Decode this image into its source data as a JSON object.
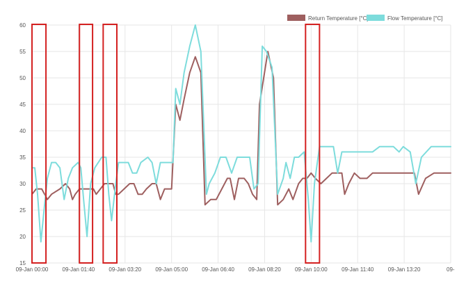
{
  "chart_data": {
    "type": "line",
    "title": "",
    "xlabel": "",
    "ylabel": "",
    "ylim": [
      15,
      60
    ],
    "y_ticks": [
      15,
      20,
      25,
      30,
      35,
      40,
      45,
      50,
      55,
      60
    ],
    "x_range_hours": [
      0,
      15
    ],
    "x_tick_labels": [
      {
        "hour": 0.0,
        "label": "09-Jan 00:00"
      },
      {
        "hour": 1.6667,
        "label": "09-Jan 01:40"
      },
      {
        "hour": 3.3333,
        "label": "09-Jan 03:20"
      },
      {
        "hour": 5.0,
        "label": "09-Jan 05:00"
      },
      {
        "hour": 6.6667,
        "label": "09-Jan 06:40"
      },
      {
        "hour": 8.3333,
        "label": "09-Jan 08:20"
      },
      {
        "hour": 10.0,
        "label": "09-Jan 10:00"
      },
      {
        "hour": 11.6667,
        "label": "09-Jan 11:40"
      },
      {
        "hour": 13.3333,
        "label": "09-Jan 13:20"
      },
      {
        "hour": 15.0,
        "label": "09-"
      }
    ],
    "grid": true,
    "legend_position": "top-right",
    "series": [
      {
        "name": "Return Temperature [°C]",
        "color": "#9e5f5f",
        "points": [
          [
            0.0,
            28
          ],
          [
            0.15,
            29
          ],
          [
            0.35,
            29
          ],
          [
            0.45,
            28
          ],
          [
            0.55,
            27
          ],
          [
            0.7,
            28
          ],
          [
            1.0,
            29
          ],
          [
            1.2,
            30
          ],
          [
            1.35,
            29
          ],
          [
            1.45,
            27
          ],
          [
            1.55,
            28
          ],
          [
            1.7,
            29
          ],
          [
            2.05,
            29
          ],
          [
            2.2,
            29
          ],
          [
            2.3,
            28
          ],
          [
            2.45,
            29
          ],
          [
            2.6,
            30
          ],
          [
            2.9,
            30
          ],
          [
            3.0,
            28
          ],
          [
            3.1,
            28
          ],
          [
            3.3,
            29
          ],
          [
            3.5,
            30
          ],
          [
            3.65,
            30
          ],
          [
            3.8,
            28
          ],
          [
            3.95,
            28
          ],
          [
            4.1,
            29
          ],
          [
            4.3,
            30
          ],
          [
            4.45,
            30
          ],
          [
            4.6,
            27
          ],
          [
            4.75,
            29
          ],
          [
            5.0,
            29
          ],
          [
            5.15,
            45
          ],
          [
            5.3,
            42
          ],
          [
            5.45,
            46
          ],
          [
            5.65,
            51
          ],
          [
            5.85,
            54
          ],
          [
            6.05,
            51
          ],
          [
            6.2,
            26
          ],
          [
            6.4,
            27
          ],
          [
            6.6,
            27
          ],
          [
            6.8,
            29
          ],
          [
            7.0,
            31
          ],
          [
            7.1,
            31
          ],
          [
            7.25,
            27
          ],
          [
            7.4,
            31
          ],
          [
            7.6,
            31
          ],
          [
            7.75,
            30
          ],
          [
            7.9,
            28
          ],
          [
            8.05,
            27
          ],
          [
            8.15,
            45
          ],
          [
            8.3,
            50
          ],
          [
            8.45,
            55
          ],
          [
            8.65,
            50
          ],
          [
            8.8,
            26
          ],
          [
            9.0,
            27
          ],
          [
            9.2,
            29
          ],
          [
            9.35,
            27
          ],
          [
            9.55,
            30
          ],
          [
            9.7,
            31
          ],
          [
            9.85,
            31
          ],
          [
            10.0,
            32
          ],
          [
            10.15,
            31
          ],
          [
            10.35,
            30
          ],
          [
            10.55,
            31
          ],
          [
            10.75,
            32
          ],
          [
            11.1,
            32
          ],
          [
            11.2,
            28
          ],
          [
            11.35,
            30
          ],
          [
            11.55,
            32
          ],
          [
            11.75,
            31
          ],
          [
            12.0,
            31
          ],
          [
            12.2,
            32
          ],
          [
            12.6,
            32
          ],
          [
            13.4,
            32
          ],
          [
            13.7,
            32
          ],
          [
            13.85,
            28
          ],
          [
            14.1,
            31
          ],
          [
            14.4,
            32
          ],
          [
            15.0,
            32
          ]
        ]
      },
      {
        "name": "Flow Temperature [°C]",
        "color": "#7ddcdc",
        "points": [
          [
            0.0,
            33
          ],
          [
            0.1,
            33
          ],
          [
            0.2,
            28
          ],
          [
            0.32,
            19
          ],
          [
            0.45,
            26
          ],
          [
            0.55,
            31
          ],
          [
            0.7,
            34
          ],
          [
            0.85,
            34
          ],
          [
            1.0,
            33
          ],
          [
            1.15,
            27
          ],
          [
            1.3,
            31
          ],
          [
            1.45,
            33
          ],
          [
            1.65,
            34
          ],
          [
            1.75,
            33
          ],
          [
            1.85,
            27
          ],
          [
            1.97,
            20
          ],
          [
            2.1,
            30
          ],
          [
            2.25,
            33
          ],
          [
            2.5,
            35
          ],
          [
            2.65,
            35
          ],
          [
            2.75,
            28
          ],
          [
            2.85,
            23
          ],
          [
            3.0,
            30
          ],
          [
            3.1,
            34
          ],
          [
            3.25,
            34
          ],
          [
            3.45,
            34
          ],
          [
            3.6,
            32
          ],
          [
            3.75,
            32
          ],
          [
            3.9,
            34
          ],
          [
            4.15,
            35
          ],
          [
            4.3,
            34
          ],
          [
            4.45,
            30
          ],
          [
            4.6,
            34
          ],
          [
            4.85,
            34
          ],
          [
            5.05,
            34
          ],
          [
            5.15,
            48
          ],
          [
            5.3,
            45
          ],
          [
            5.45,
            51
          ],
          [
            5.65,
            56
          ],
          [
            5.85,
            60
          ],
          [
            6.05,
            55
          ],
          [
            6.25,
            28
          ],
          [
            6.35,
            30
          ],
          [
            6.55,
            32
          ],
          [
            6.75,
            35
          ],
          [
            6.95,
            35
          ],
          [
            7.15,
            32
          ],
          [
            7.35,
            35
          ],
          [
            7.55,
            35
          ],
          [
            7.8,
            35
          ],
          [
            7.95,
            29
          ],
          [
            8.1,
            30
          ],
          [
            8.25,
            56
          ],
          [
            8.4,
            55
          ],
          [
            8.6,
            52
          ],
          [
            8.8,
            28
          ],
          [
            9.0,
            31
          ],
          [
            9.1,
            34
          ],
          [
            9.25,
            31
          ],
          [
            9.4,
            35
          ],
          [
            9.55,
            35
          ],
          [
            9.75,
            36
          ],
          [
            9.9,
            27
          ],
          [
            10.0,
            19
          ],
          [
            10.12,
            30
          ],
          [
            10.3,
            37
          ],
          [
            10.8,
            37
          ],
          [
            10.95,
            32
          ],
          [
            11.1,
            36
          ],
          [
            11.35,
            36
          ],
          [
            12.2,
            36
          ],
          [
            12.45,
            37
          ],
          [
            12.95,
            37
          ],
          [
            13.15,
            36
          ],
          [
            13.3,
            37
          ],
          [
            13.55,
            36
          ],
          [
            13.75,
            30
          ],
          [
            13.95,
            35
          ],
          [
            14.3,
            37
          ],
          [
            15.0,
            37
          ]
        ]
      }
    ],
    "annotations": [
      {
        "kind": "highlight-box",
        "hour_start": 0.0,
        "hour_end": 0.5,
        "color": "#d42020"
      },
      {
        "kind": "highlight-box",
        "hour_start": 1.7,
        "hour_end": 2.17,
        "color": "#d42020"
      },
      {
        "kind": "highlight-box",
        "hour_start": 2.55,
        "hour_end": 3.04,
        "color": "#d42020"
      },
      {
        "kind": "highlight-box",
        "hour_start": 9.8,
        "hour_end": 10.3,
        "color": "#d42020"
      }
    ]
  }
}
